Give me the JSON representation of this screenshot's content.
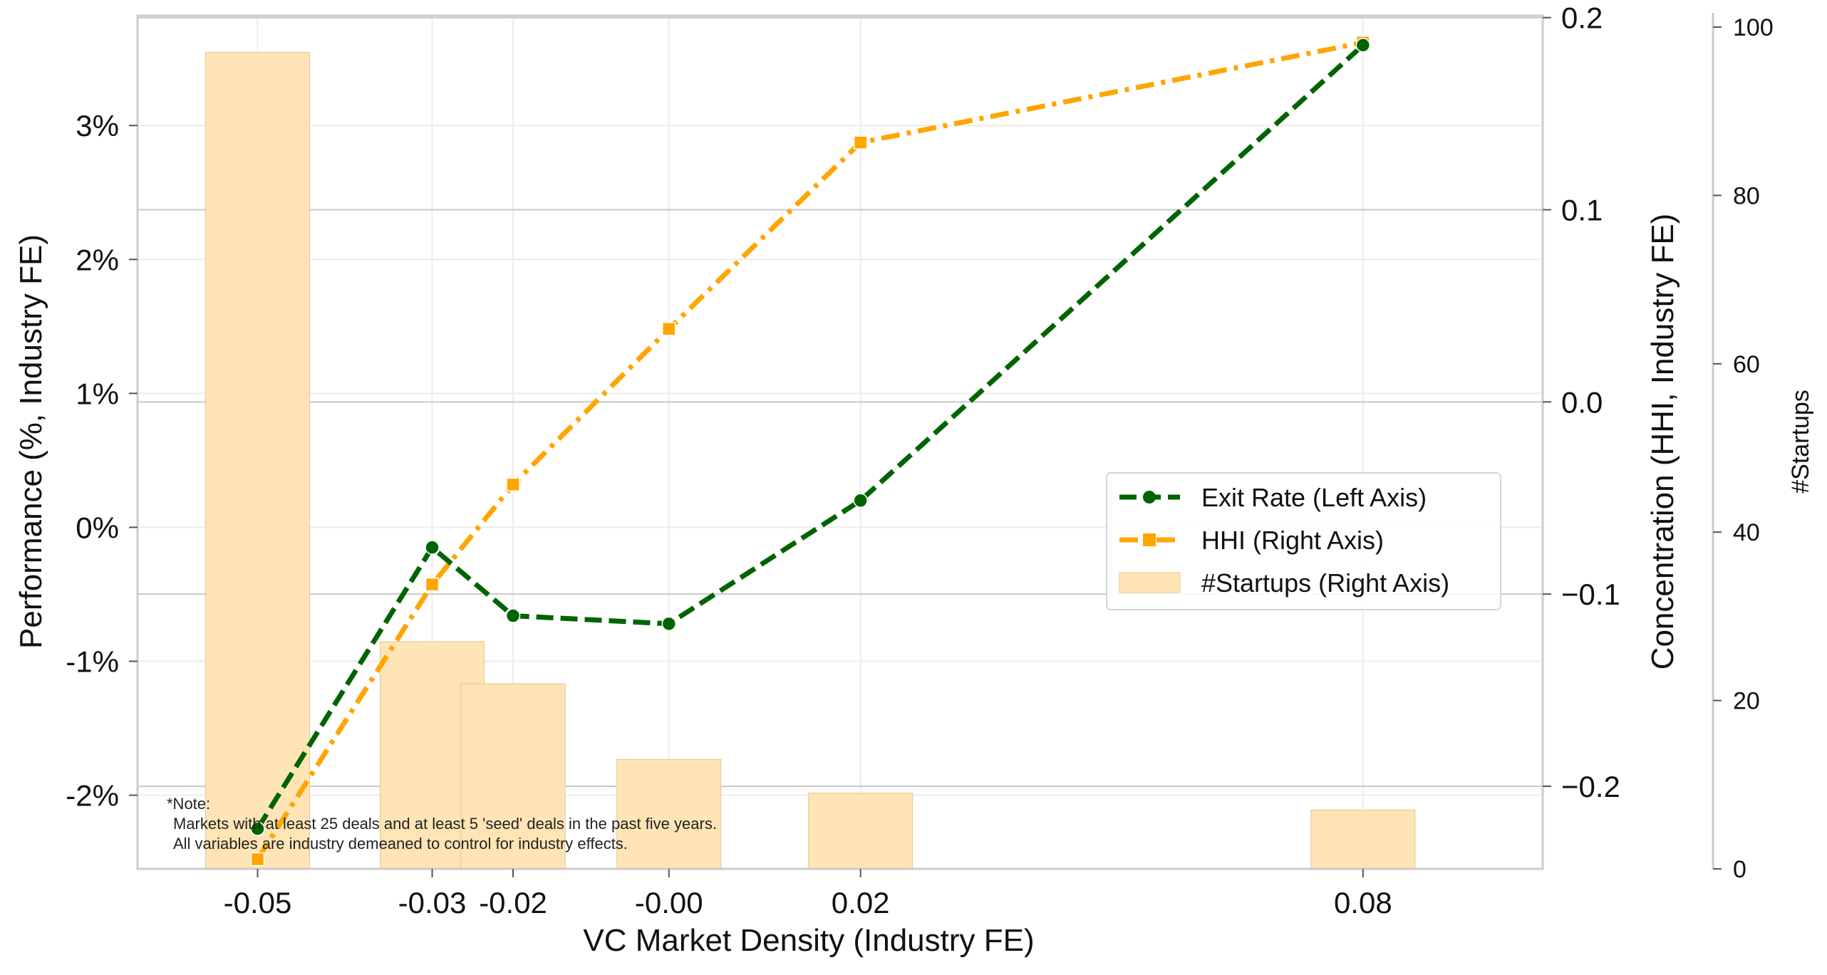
{
  "chart_data": {
    "type": "line",
    "title": "",
    "xlabel": "VC Market Density (Industry FE)",
    "ylabel_left": "Performance (%, Industry FE)",
    "ylabel_right": "Concentration (HHI, Industry FE)",
    "ylabel_right2": "#Startups",
    "x_ticks": [
      "-0.05",
      "-0.03",
      "-0.02",
      "-0.00",
      "0.02",
      "0.08"
    ],
    "x_values": [
      -0.0498,
      -0.0293,
      -0.0198,
      -0.0015,
      0.021,
      0.08
    ],
    "xlim": [
      -0.0639,
      0.1011
    ],
    "left_axis": {
      "ylim": [
        -2.55,
        3.82
      ],
      "ticks": [
        -2,
        -1,
        0,
        1,
        2,
        3
      ],
      "tick_labels": [
        "-2%",
        "-1%",
        "0%",
        "1%",
        "2%",
        "3%"
      ]
    },
    "right_axis": {
      "ylim": [
        -0.243,
        0.201
      ],
      "ticks": [
        -0.2,
        -0.1,
        0.0,
        0.1,
        0.2
      ],
      "tick_labels": [
        "−0.2",
        "−0.1",
        "0.0",
        "0.1",
        "0.2"
      ]
    },
    "right_axis2": {
      "ylim": [
        0,
        100
      ],
      "ticks": [
        0,
        20,
        40,
        60,
        80,
        100
      ],
      "tick_labels": [
        "0",
        "20",
        "40",
        "60",
        "80",
        "100"
      ]
    },
    "series": [
      {
        "name": "Exit Rate (Left Axis)",
        "axis": "left",
        "style": "dashed",
        "marker": "circle",
        "color": "#006400",
        "values": [
          -2.25,
          -0.15,
          -0.66,
          -0.72,
          0.2,
          3.6
        ]
      },
      {
        "name": "HHI (Right Axis)",
        "axis": "right",
        "style": "dashdot",
        "marker": "square",
        "color": "#FFA500",
        "values": [
          -0.238,
          -0.095,
          -0.043,
          0.038,
          0.135,
          0.187
        ]
      },
      {
        "name": "#Startups (Right Axis)",
        "axis": "right2",
        "type": "bar",
        "color": "#FFE4B5",
        "values": [
          97,
          27,
          22,
          13,
          9,
          7
        ]
      }
    ],
    "legend_position": "center-right",
    "grid": true,
    "note": [
      "*Note:",
      "Markets with at least 25 deals and at least 5 'seed' deals in the past five years.",
      "All variables are industry demeaned to control for industry effects."
    ]
  }
}
